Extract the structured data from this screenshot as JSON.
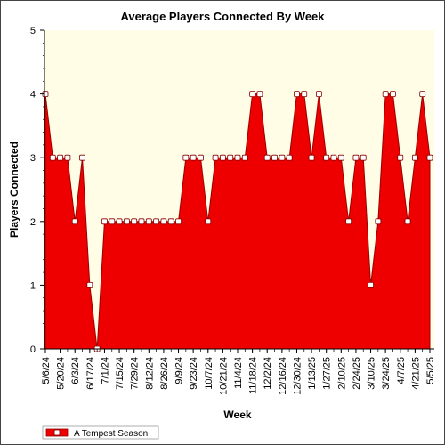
{
  "chart_data": {
    "type": "area",
    "title": "Average Players Connected By Week",
    "xlabel": "Week",
    "ylabel": "Players Connected",
    "ylim": [
      0,
      5
    ],
    "yticks": [
      0,
      1,
      2,
      3,
      4,
      5
    ],
    "grid": false,
    "legend_position": "bottom-left",
    "colors": {
      "plot_background": "#fffde6",
      "area_fill": "#ee0000",
      "area_edge": "#990000",
      "marker_fill": "#ffffff",
      "marker_edge": "#880000"
    },
    "x_tick_labels": [
      "5/6/24",
      "5/20/24",
      "6/3/24",
      "6/17/24",
      "7/1/24",
      "7/15/24",
      "7/29/24",
      "8/12/24",
      "8/26/24",
      "9/9/24",
      "9/23/24",
      "10/7/24",
      "10/21/24",
      "11/4/24",
      "11/18/24",
      "12/2/24",
      "12/16/24",
      "12/30/24",
      "1/13/25",
      "1/27/25",
      "2/10/25",
      "2/24/25",
      "3/10/25",
      "3/24/25",
      "4/7/25",
      "4/21/25",
      "5/5/25"
    ],
    "series": [
      {
        "name": "A Tempest Season",
        "x": [
          "5/6/24",
          "5/13/24",
          "5/20/24",
          "5/27/24",
          "6/3/24",
          "6/10/24",
          "6/17/24",
          "6/24/24",
          "7/1/24",
          "7/8/24",
          "7/15/24",
          "7/22/24",
          "7/29/24",
          "8/5/24",
          "8/12/24",
          "8/19/24",
          "8/26/24",
          "9/2/24",
          "9/9/24",
          "9/16/24",
          "9/23/24",
          "9/30/24",
          "10/7/24",
          "10/14/24",
          "10/21/24",
          "10/28/24",
          "11/4/24",
          "11/11/24",
          "11/18/24",
          "11/25/24",
          "12/2/24",
          "12/9/24",
          "12/16/24",
          "12/23/24",
          "12/30/24",
          "1/6/25",
          "1/13/25",
          "1/20/25",
          "1/27/25",
          "2/3/25",
          "2/10/25",
          "2/17/25",
          "2/24/25",
          "3/3/25",
          "3/10/25",
          "3/17/25",
          "3/24/25",
          "3/31/25",
          "4/7/25",
          "4/14/25",
          "4/21/25",
          "4/28/25",
          "5/5/25"
        ],
        "values": [
          4,
          3,
          3,
          3,
          2,
          3,
          1,
          0,
          2,
          2,
          2,
          2,
          2,
          2,
          2,
          2,
          2,
          2,
          2,
          3,
          3,
          3,
          2,
          3,
          3,
          3,
          3,
          3,
          4,
          4,
          3,
          3,
          3,
          3,
          4,
          4,
          3,
          4,
          3,
          3,
          3,
          2,
          3,
          3,
          1,
          2,
          4,
          4,
          3,
          2,
          3,
          4,
          3
        ]
      }
    ]
  }
}
